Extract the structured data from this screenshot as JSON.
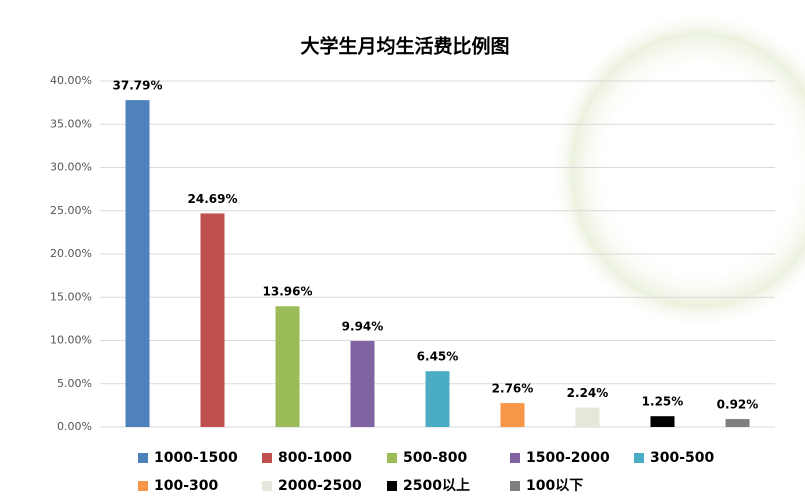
{
  "chart_data": {
    "type": "bar",
    "title": "大学生月均生活费比例图",
    "ylim": [
      0,
      40
    ],
    "yticks": [
      {
        "value": 0,
        "label": "0.00%"
      },
      {
        "value": 5,
        "label": "5.00%"
      },
      {
        "value": 10,
        "label": "10.00%"
      },
      {
        "value": 15,
        "label": "15.00%"
      },
      {
        "value": 20,
        "label": "20.00%"
      },
      {
        "value": 25,
        "label": "25.00%"
      },
      {
        "value": 30,
        "label": "30.00%"
      },
      {
        "value": 35,
        "label": "35.00%"
      },
      {
        "value": 40,
        "label": "40.00%"
      }
    ],
    "grid": true,
    "legend": "bottom",
    "series": [
      {
        "name": "1000-1500",
        "color": "#4f81bd",
        "values": [
          37.79
        ],
        "value_labels": [
          "37.79%"
        ]
      },
      {
        "name": "800-1000",
        "color": "#c0504d",
        "values": [
          24.69
        ],
        "value_labels": [
          "24.69%"
        ]
      },
      {
        "name": "500-800",
        "color": "#9bbb59",
        "values": [
          13.96
        ],
        "value_labels": [
          "13.96%"
        ]
      },
      {
        "name": "1500-2000",
        "color": "#8064a2",
        "values": [
          9.94
        ],
        "value_labels": [
          "9.94%"
        ]
      },
      {
        "name": "300-500",
        "color": "#4bacc6",
        "values": [
          6.45
        ],
        "value_labels": [
          "6.45%"
        ]
      },
      {
        "name": "100-300",
        "color": "#f79646",
        "values": [
          2.76
        ],
        "value_labels": [
          "2.76%"
        ]
      },
      {
        "name": "2000-2500",
        "color": "#e6e6da",
        "values": [
          2.24
        ],
        "value_labels": [
          "2.24%"
        ]
      },
      {
        "name": "2500以上",
        "color": "#000000",
        "values": [
          1.25
        ],
        "value_labels": [
          "1.25%"
        ]
      },
      {
        "name": "100以下",
        "color": "#7f7f7f",
        "values": [
          0.92
        ],
        "value_labels": [
          "0.92%"
        ]
      }
    ]
  }
}
